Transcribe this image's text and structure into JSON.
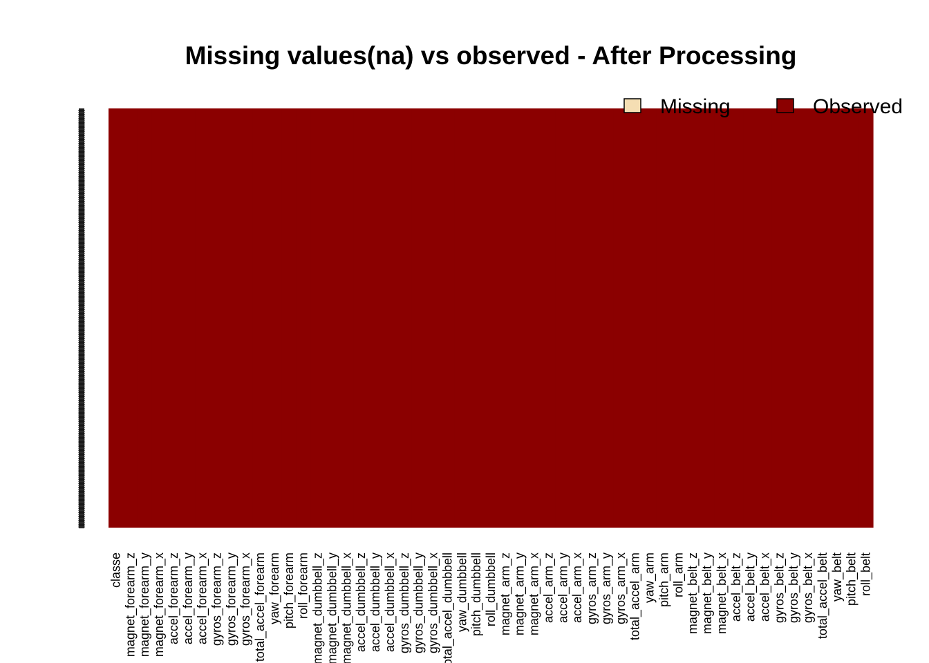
{
  "chart_data": {
    "type": "heatmap",
    "title": "Missing values(na) vs observed - After Processing",
    "legend": {
      "placement": "top-right",
      "items": [
        {
          "label": "Missing",
          "color": "#f5deb3"
        },
        {
          "label": "Observed",
          "color": "#8b0000"
        }
      ]
    },
    "columns": [
      "classe",
      "magnet_forearm_z",
      "magnet_forearm_y",
      "magnet_forearm_x",
      "accel_forearm_z",
      "accel_forearm_y",
      "accel_forearm_x",
      "gyros_forearm_z",
      "gyros_forearm_y",
      "gyros_forearm_x",
      "total_accel_forearm",
      "yaw_forearm",
      "pitch_forearm",
      "roll_forearm",
      "magnet_dumbbell_z",
      "magnet_dumbbell_y",
      "magnet_dumbbell_x",
      "accel_dumbbell_z",
      "accel_dumbbell_y",
      "accel_dumbbell_x",
      "gyros_dumbbell_z",
      "gyros_dumbbell_y",
      "gyros_dumbbell_x",
      "total_accel_dumbbell",
      "yaw_dumbbell",
      "pitch_dumbbell",
      "roll_dumbbell",
      "magnet_arm_z",
      "magnet_arm_y",
      "magnet_arm_x",
      "accel_arm_z",
      "accel_arm_y",
      "accel_arm_x",
      "gyros_arm_z",
      "gyros_arm_y",
      "gyros_arm_x",
      "total_accel_arm",
      "yaw_arm",
      "pitch_arm",
      "roll_arm",
      "magnet_belt_z",
      "magnet_belt_y",
      "magnet_belt_x",
      "accel_belt_z",
      "accel_belt_y",
      "accel_belt_x",
      "gyros_belt_z",
      "gyros_belt_y",
      "gyros_belt_x",
      "total_accel_belt",
      "yaw_belt",
      "pitch_belt",
      "roll_belt"
    ],
    "missing_fraction": [
      0,
      0,
      0,
      0,
      0,
      0,
      0,
      0,
      0,
      0,
      0,
      0,
      0,
      0,
      0,
      0,
      0,
      0,
      0,
      0,
      0,
      0,
      0,
      0,
      0,
      0,
      0,
      0,
      0,
      0,
      0,
      0,
      0,
      0,
      0,
      0,
      0,
      0,
      0,
      0,
      0,
      0,
      0,
      0,
      0,
      0,
      0,
      0,
      0,
      0,
      0,
      0,
      0
    ],
    "grid": false
  }
}
